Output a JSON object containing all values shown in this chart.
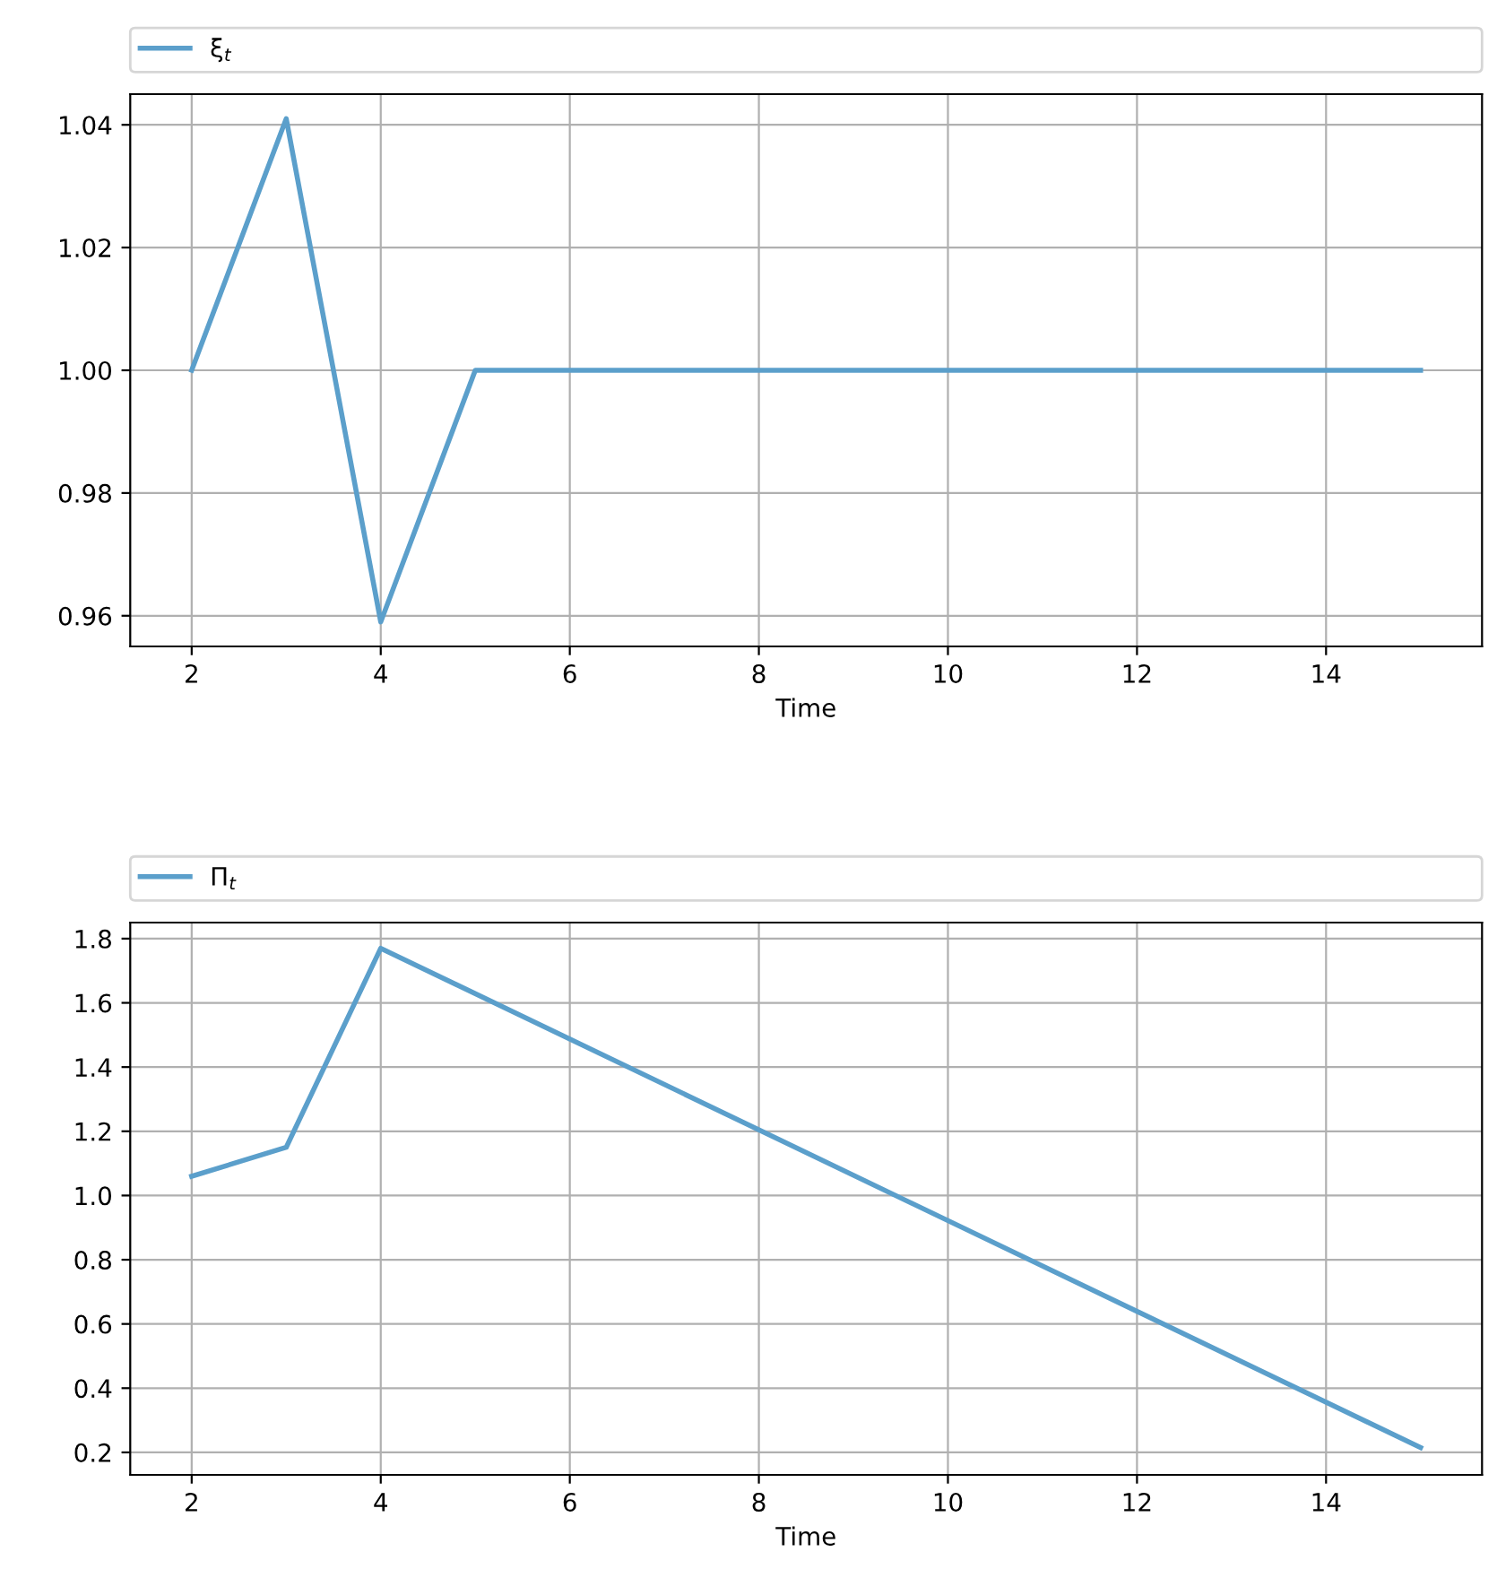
{
  "chart_data": [
    {
      "type": "line",
      "xlabel": "Time",
      "x": [
        2,
        3,
        4,
        5,
        15
      ],
      "series": [
        {
          "name": "ξ$_{t}$",
          "color": "#5b9fcb",
          "values": [
            1.0,
            1.041,
            0.959,
            1.0,
            1.0
          ]
        }
      ],
      "xlim": [
        1.35,
        15.65
      ],
      "xticks": [
        2,
        4,
        6,
        8,
        10,
        12,
        14
      ],
      "ylim": [
        0.955,
        1.045
      ],
      "yticks": [
        {
          "value": 0.96,
          "label": "0.96"
        },
        {
          "value": 0.98,
          "label": "0.98"
        },
        {
          "value": 1.0,
          "label": "1.00"
        },
        {
          "value": 1.02,
          "label": "1.02"
        },
        {
          "value": 1.04,
          "label": "1.04"
        }
      ],
      "grid": true,
      "legend": "top",
      "marker": "none",
      "line_style": "solid"
    },
    {
      "type": "line",
      "xlabel": "Time",
      "x": [
        2,
        3,
        4,
        15
      ],
      "series": [
        {
          "name": "Π$_{t}$",
          "color": "#5b9fcb",
          "values": [
            1.06,
            1.15,
            1.77,
            0.215
          ]
        }
      ],
      "xlim": [
        1.35,
        15.65
      ],
      "xticks": [
        2,
        4,
        6,
        8,
        10,
        12,
        14
      ],
      "ylim": [
        0.13,
        1.85
      ],
      "yticks": [
        0.2,
        0.4,
        0.6,
        0.8,
        {
          "value": 1.0,
          "label": "1.0"
        },
        1.2,
        1.4,
        1.6,
        1.8
      ],
      "grid": true,
      "legend": "top",
      "marker": "none",
      "line_style": "solid"
    }
  ]
}
